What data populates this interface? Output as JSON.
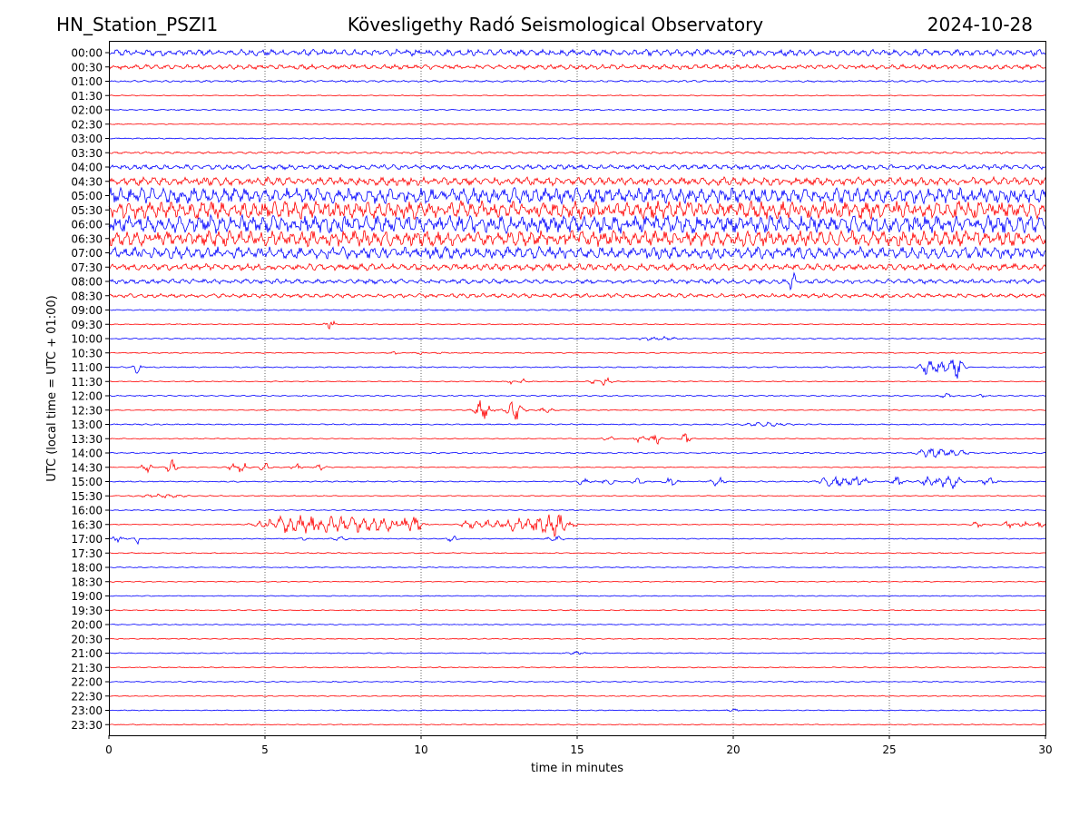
{
  "header": {
    "station": "HN_Station_PSZI1",
    "observatory": "Kövesligethy Radó Seismological Observatory",
    "date": "2024-10-28"
  },
  "chart_data": {
    "type": "line",
    "title": "Kövesligethy Radó Seismological Observatory",
    "xlabel": "time in minutes",
    "ylabel": "UTC (local time = UTC + 01:00)",
    "xlim": [
      0,
      30
    ],
    "x_ticks": [
      "0",
      "5",
      "10",
      "15",
      "20",
      "25",
      "30"
    ],
    "x_tick_values": [
      0,
      5,
      10,
      15,
      20,
      25,
      30
    ],
    "grid": "vertical dotted",
    "trace_colors": [
      "#0000ff",
      "#ff0000"
    ],
    "rows": [
      {
        "label": "00:00",
        "amplitude": 0.55,
        "events": []
      },
      {
        "label": "00:30",
        "amplitude": 0.4,
        "events": []
      },
      {
        "label": "01:00",
        "amplitude": 0.15,
        "events": []
      },
      {
        "label": "01:30",
        "amplitude": 0.08,
        "events": []
      },
      {
        "label": "02:00",
        "amplitude": 0.1,
        "events": []
      },
      {
        "label": "02:30",
        "amplitude": 0.08,
        "events": []
      },
      {
        "label": "03:00",
        "amplitude": 0.1,
        "events": []
      },
      {
        "label": "03:30",
        "amplitude": 0.18,
        "events": []
      },
      {
        "label": "04:00",
        "amplitude": 0.4,
        "events": []
      },
      {
        "label": "04:30",
        "amplitude": 0.7,
        "events": []
      },
      {
        "label": "05:00",
        "amplitude": 1.3,
        "events": []
      },
      {
        "label": "05:30",
        "amplitude": 1.5,
        "events": []
      },
      {
        "label": "06:00",
        "amplitude": 1.5,
        "events": []
      },
      {
        "label": "06:30",
        "amplitude": 1.3,
        "events": []
      },
      {
        "label": "07:00",
        "amplitude": 1.0,
        "events": []
      },
      {
        "label": "07:30",
        "amplitude": 0.55,
        "events": []
      },
      {
        "label": "08:00",
        "amplitude": 0.4,
        "events": [
          {
            "t": 21.9,
            "a": 1.6,
            "w": 0.1
          }
        ]
      },
      {
        "label": "08:30",
        "amplitude": 0.35,
        "events": []
      },
      {
        "label": "09:00",
        "amplitude": 0.1,
        "events": []
      },
      {
        "label": "09:30",
        "amplitude": 0.08,
        "events": [
          {
            "t": 7.1,
            "a": 0.7,
            "w": 0.15
          }
        ]
      },
      {
        "label": "10:00",
        "amplitude": 0.1,
        "events": [
          {
            "t": 17.5,
            "a": 0.3,
            "w": 0.6
          }
        ]
      },
      {
        "label": "10:30",
        "amplitude": 0.08,
        "events": [
          {
            "t": 9.2,
            "a": 0.4,
            "w": 0.1
          },
          {
            "t": 10.0,
            "a": 0.3,
            "w": 0.1
          },
          {
            "t": 10.6,
            "a": 0.3,
            "w": 0.1
          }
        ]
      },
      {
        "label": "11:00",
        "amplitude": 0.1,
        "events": [
          {
            "t": 0.9,
            "a": 1.0,
            "w": 0.1
          },
          {
            "t": 26.3,
            "a": 1.3,
            "w": 0.3
          },
          {
            "t": 26.9,
            "a": 1.0,
            "w": 0.3
          },
          {
            "t": 27.2,
            "a": 1.6,
            "w": 0.2
          }
        ]
      },
      {
        "label": "11:30",
        "amplitude": 0.08,
        "events": [
          {
            "t": 12.9,
            "a": 0.7,
            "w": 0.1
          },
          {
            "t": 13.3,
            "a": 0.5,
            "w": 0.1
          },
          {
            "t": 15.5,
            "a": 0.5,
            "w": 0.1
          },
          {
            "t": 15.9,
            "a": 0.9,
            "w": 0.15
          }
        ]
      },
      {
        "label": "12:00",
        "amplitude": 0.1,
        "events": [
          {
            "t": 26.8,
            "a": 0.4,
            "w": 0.2
          },
          {
            "t": 28.0,
            "a": 0.4,
            "w": 0.1
          }
        ]
      },
      {
        "label": "12:30",
        "amplitude": 0.08,
        "events": [
          {
            "t": 12.0,
            "a": 1.8,
            "w": 0.25
          },
          {
            "t": 13.0,
            "a": 1.9,
            "w": 0.25
          },
          {
            "t": 14.0,
            "a": 0.6,
            "w": 0.2
          }
        ]
      },
      {
        "label": "13:00",
        "amplitude": 0.1,
        "events": [
          {
            "t": 21.0,
            "a": 0.3,
            "w": 0.6
          }
        ]
      },
      {
        "label": "13:30",
        "amplitude": 0.08,
        "events": [
          {
            "t": 16.0,
            "a": 0.6,
            "w": 0.15
          },
          {
            "t": 17.0,
            "a": 0.8,
            "w": 0.15
          },
          {
            "t": 17.5,
            "a": 1.2,
            "w": 0.15
          },
          {
            "t": 18.5,
            "a": 1.2,
            "w": 0.15
          }
        ]
      },
      {
        "label": "14:00",
        "amplitude": 0.1,
        "events": [
          {
            "t": 26.2,
            "a": 0.6,
            "w": 0.3
          },
          {
            "t": 26.6,
            "a": 0.6,
            "w": 0.3
          },
          {
            "t": 27.2,
            "a": 0.5,
            "w": 0.3
          }
        ]
      },
      {
        "label": "14:30",
        "amplitude": 0.08,
        "events": [
          {
            "t": 1.2,
            "a": 1.0,
            "w": 0.15
          },
          {
            "t": 2.0,
            "a": 1.2,
            "w": 0.15
          },
          {
            "t": 4.0,
            "a": 0.7,
            "w": 0.15
          },
          {
            "t": 4.3,
            "a": 1.0,
            "w": 0.15
          },
          {
            "t": 5.0,
            "a": 0.8,
            "w": 0.15
          },
          {
            "t": 6.0,
            "a": 0.6,
            "w": 0.15
          },
          {
            "t": 6.8,
            "a": 0.6,
            "w": 0.15
          }
        ]
      },
      {
        "label": "15:00",
        "amplitude": 0.1,
        "events": [
          {
            "t": 15.2,
            "a": 0.6,
            "w": 0.2
          },
          {
            "t": 16.0,
            "a": 0.6,
            "w": 0.2
          },
          {
            "t": 17.0,
            "a": 0.6,
            "w": 0.2
          },
          {
            "t": 18.0,
            "a": 0.6,
            "w": 0.2
          },
          {
            "t": 19.5,
            "a": 0.7,
            "w": 0.2
          },
          {
            "t": 23.2,
            "a": 0.9,
            "w": 0.4
          },
          {
            "t": 24.0,
            "a": 0.9,
            "w": 0.3
          },
          {
            "t": 25.3,
            "a": 0.8,
            "w": 0.2
          },
          {
            "t": 26.2,
            "a": 0.9,
            "w": 0.2
          },
          {
            "t": 26.7,
            "a": 1.0,
            "w": 0.2
          },
          {
            "t": 27.1,
            "a": 1.3,
            "w": 0.2
          },
          {
            "t": 28.2,
            "a": 0.8,
            "w": 0.2
          }
        ]
      },
      {
        "label": "15:30",
        "amplitude": 0.08,
        "events": [
          {
            "t": 1.7,
            "a": 0.3,
            "w": 0.7
          }
        ]
      },
      {
        "label": "16:00",
        "amplitude": 0.08,
        "events": []
      },
      {
        "label": "16:30",
        "amplitude": 0.08,
        "events": [
          {
            "t": 5.3,
            "a": 1.0,
            "w": 0.5
          },
          {
            "t": 6.1,
            "a": 1.3,
            "w": 0.7
          },
          {
            "t": 7.0,
            "a": 1.1,
            "w": 0.6
          },
          {
            "t": 7.9,
            "a": 1.2,
            "w": 0.6
          },
          {
            "t": 8.8,
            "a": 1.0,
            "w": 0.5
          },
          {
            "t": 9.5,
            "a": 1.1,
            "w": 0.4
          },
          {
            "t": 9.9,
            "a": 0.9,
            "w": 0.2
          },
          {
            "t": 11.5,
            "a": 0.6,
            "w": 0.2
          },
          {
            "t": 12.2,
            "a": 0.7,
            "w": 0.5
          },
          {
            "t": 13.0,
            "a": 1.1,
            "w": 0.3
          },
          {
            "t": 13.6,
            "a": 1.0,
            "w": 0.3
          },
          {
            "t": 14.1,
            "a": 1.8,
            "w": 0.4
          },
          {
            "t": 14.6,
            "a": 1.0,
            "w": 0.3
          },
          {
            "t": 27.8,
            "a": 0.8,
            "w": 0.15
          },
          {
            "t": 28.8,
            "a": 0.6,
            "w": 0.15
          },
          {
            "t": 29.3,
            "a": 0.6,
            "w": 0.15
          },
          {
            "t": 29.8,
            "a": 0.6,
            "w": 0.15
          }
        ]
      },
      {
        "label": "17:00",
        "amplitude": 0.08,
        "events": [
          {
            "t": 0.3,
            "a": 0.5,
            "w": 0.2
          },
          {
            "t": 0.9,
            "a": 1.0,
            "w": 0.1
          },
          {
            "t": 6.2,
            "a": 0.4,
            "w": 0.1
          },
          {
            "t": 7.4,
            "a": 0.5,
            "w": 0.2
          },
          {
            "t": 11.0,
            "a": 0.6,
            "w": 0.15
          },
          {
            "t": 14.3,
            "a": 0.8,
            "w": 0.2
          }
        ]
      },
      {
        "label": "17:30",
        "amplitude": 0.08,
        "events": []
      },
      {
        "label": "18:00",
        "amplitude": 0.08,
        "events": []
      },
      {
        "label": "18:30",
        "amplitude": 0.08,
        "events": []
      },
      {
        "label": "19:00",
        "amplitude": 0.08,
        "events": []
      },
      {
        "label": "19:30",
        "amplitude": 0.08,
        "events": []
      },
      {
        "label": "20:00",
        "amplitude": 0.08,
        "events": []
      },
      {
        "label": "20:30",
        "amplitude": 0.08,
        "events": []
      },
      {
        "label": "21:00",
        "amplitude": 0.08,
        "events": [
          {
            "t": 15.0,
            "a": 0.2,
            "w": 0.3
          }
        ]
      },
      {
        "label": "21:30",
        "amplitude": 0.08,
        "events": [
          {
            "t": 6.6,
            "a": 0.3,
            "w": 0.05
          }
        ]
      },
      {
        "label": "22:00",
        "amplitude": 0.08,
        "events": []
      },
      {
        "label": "22:30",
        "amplitude": 0.08,
        "events": []
      },
      {
        "label": "23:00",
        "amplitude": 0.08,
        "events": [
          {
            "t": 20.0,
            "a": 0.2,
            "w": 0.2
          }
        ]
      },
      {
        "label": "23:30",
        "amplitude": 0.08,
        "events": []
      }
    ]
  }
}
